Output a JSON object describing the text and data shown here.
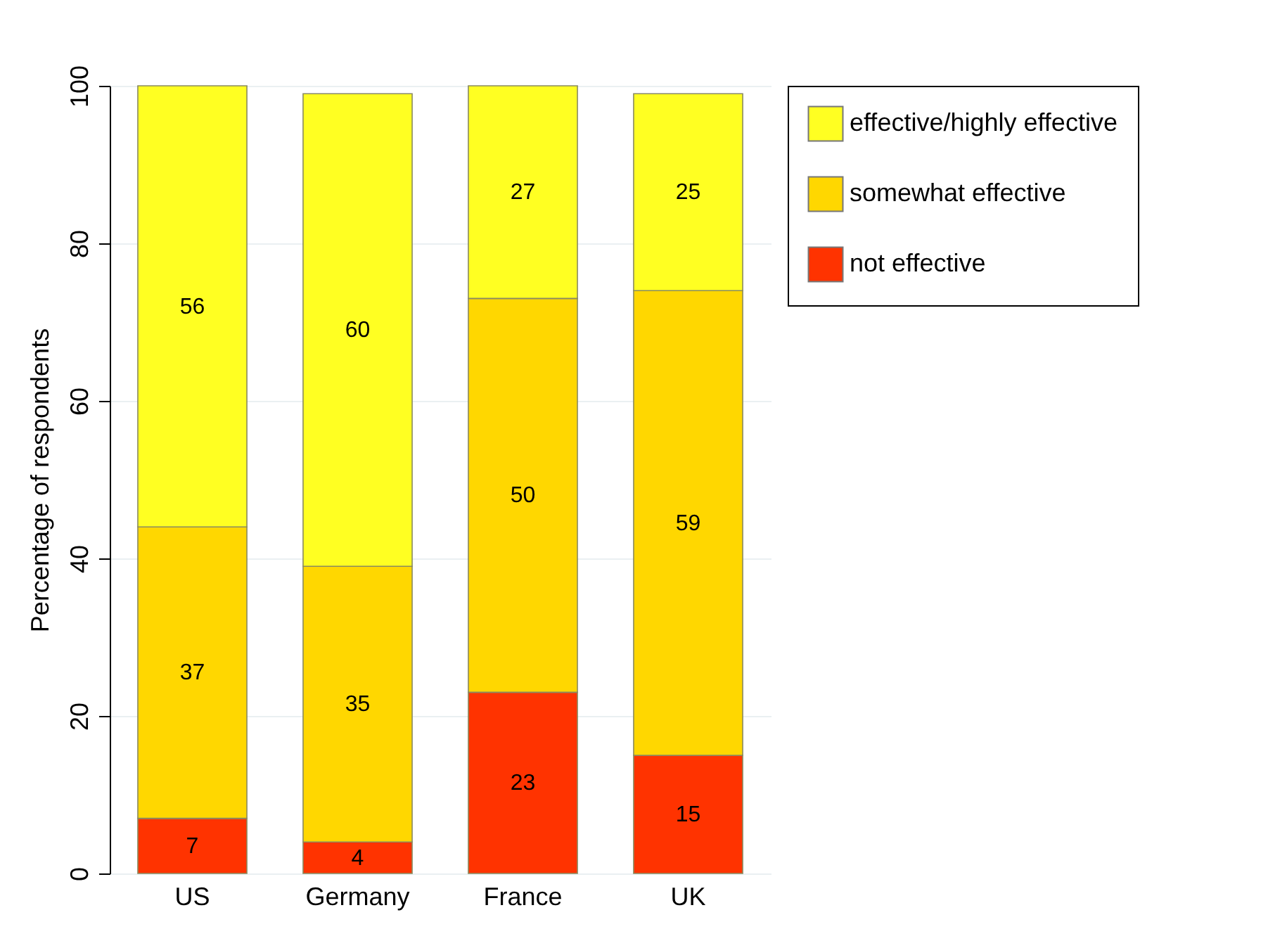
{
  "chart_data": {
    "type": "bar",
    "ylabel": "Percentage of respondents",
    "categories": [
      "US",
      "Germany",
      "France",
      "UK"
    ],
    "stacked": true,
    "data_labels": true,
    "grid": "y",
    "legend": "right",
    "ylim": [
      0,
      100
    ],
    "yticks": [
      0,
      20,
      40,
      60,
      80,
      100
    ],
    "series": [
      {
        "name": "not effective",
        "color": "#ff3300",
        "values": [
          7,
          4,
          23,
          15
        ]
      },
      {
        "name": "somewhat effective",
        "color": "#ffd700",
        "values": [
          37,
          35,
          50,
          59
        ]
      },
      {
        "name": "effective/highly effective",
        "color": "#ffff22",
        "values": [
          56,
          60,
          27,
          25
        ]
      }
    ]
  }
}
